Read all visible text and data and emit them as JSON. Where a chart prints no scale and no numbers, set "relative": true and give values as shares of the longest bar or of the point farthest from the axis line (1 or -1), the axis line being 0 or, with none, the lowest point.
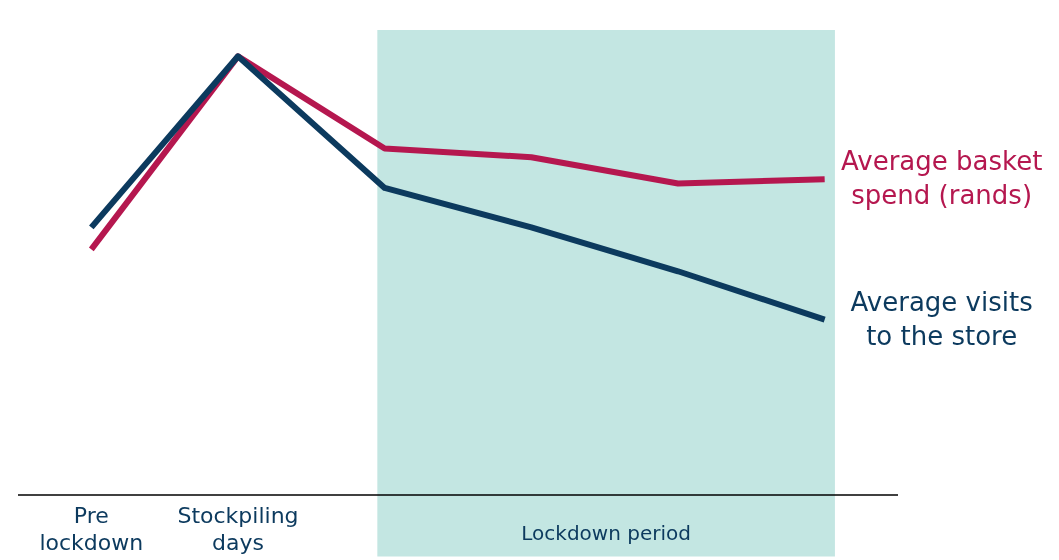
{
  "chart_data": {
    "type": "line",
    "relative": true,
    "categories": [
      "Pre lockdown",
      "Stockpiling days",
      null,
      null,
      null,
      null
    ],
    "series": [
      {
        "name": "Average basket spend (rands)",
        "color": "#b5174f",
        "values": [
          0.56,
          1.0,
          0.79,
          0.77,
          0.71,
          0.72
        ]
      },
      {
        "name": "Average visits to the store",
        "color": "#0c3a5e",
        "values": [
          0.61,
          1.0,
          0.7,
          0.61,
          0.51,
          0.4
        ]
      }
    ],
    "annotations": [
      "Lockdown period"
    ],
    "grid": false,
    "legend": false,
    "marker": "none",
    "line_style": "solid"
  }
}
